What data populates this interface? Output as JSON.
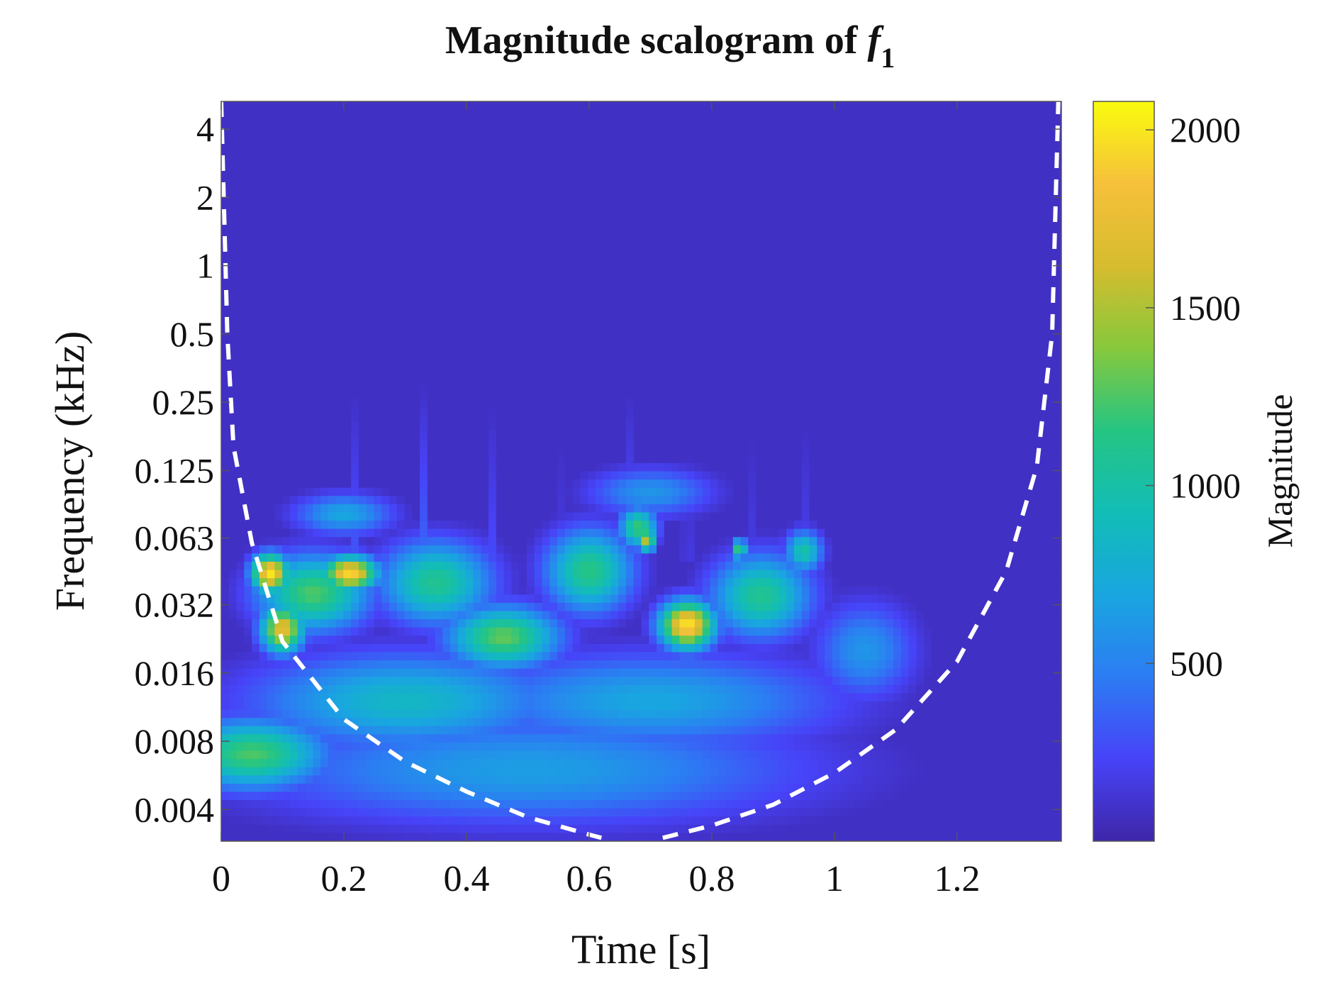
{
  "chart_data": {
    "type": "heatmap",
    "title_main": "Magnitude scalogram of ",
    "title_var": "f",
    "title_sub": "1",
    "xlabel": "Time [s]",
    "ylabel": "Frequency (kHz)",
    "colorbar_label": "Magnitude",
    "xlim": [
      0,
      1.37
    ],
    "x_ticks": [
      0,
      0.2,
      0.4,
      0.6,
      0.8,
      1,
      1.2
    ],
    "x_tick_labels": [
      "0",
      "0.2",
      "0.4",
      "0.6",
      "0.8",
      "1",
      "1.2"
    ],
    "ylim_khz": [
      0.0029,
      5.3
    ],
    "y_scale": "log2",
    "y_ticks": [
      4,
      2,
      1,
      0.5,
      0.25,
      0.125,
      0.063,
      0.032,
      0.016,
      0.008,
      0.004
    ],
    "y_tick_labels": [
      "4",
      "2",
      "1",
      "0.5",
      "0.25",
      "0.125",
      "0.063",
      "0.032",
      "0.016",
      "0.008",
      "0.004"
    ],
    "colorbar_range": [
      0,
      2080
    ],
    "colorbar_ticks": [
      2000,
      1500,
      1000,
      500
    ],
    "colorbar_tick_labels": [
      "2000",
      "1500",
      "1000",
      "500"
    ],
    "colormap": [
      "#3e26a8",
      "#4743f8",
      "#2c7cf3",
      "#19a6e0",
      "#12bdb6",
      "#25c583",
      "#87c83c",
      "#d6bc2e",
      "#f6c03b",
      "#f9fb0e"
    ],
    "background_value": 80,
    "cone_of_influence": {
      "style": "white dashed",
      "left_branch": [
        [
          0.0,
          5.3
        ],
        [
          0.01,
          0.5
        ],
        [
          0.02,
          0.16
        ],
        [
          0.05,
          0.06
        ],
        [
          0.1,
          0.022
        ],
        [
          0.2,
          0.01
        ],
        [
          0.3,
          0.0065
        ],
        [
          0.4,
          0.0048
        ],
        [
          0.5,
          0.0037
        ],
        [
          0.6,
          0.0031
        ],
        [
          0.62,
          0.003
        ]
      ],
      "right_branch": [
        [
          0.72,
          0.003
        ],
        [
          0.8,
          0.0034
        ],
        [
          0.9,
          0.0042
        ],
        [
          1.0,
          0.0058
        ],
        [
          1.1,
          0.009
        ],
        [
          1.2,
          0.018
        ],
        [
          1.28,
          0.045
        ],
        [
          1.33,
          0.13
        ],
        [
          1.355,
          0.5
        ],
        [
          1.365,
          5.3
        ]
      ]
    },
    "regions": [
      {
        "t": 0.08,
        "f": 0.044,
        "value": 2000,
        "spread_t": 0.03,
        "spread_oct": 0.28
      },
      {
        "t": 0.21,
        "f": 0.044,
        "value": 1950,
        "spread_t": 0.045,
        "spread_oct": 0.25
      },
      {
        "t": 0.1,
        "f": 0.025,
        "value": 1750,
        "spread_t": 0.035,
        "spread_oct": 0.35
      },
      {
        "t": 0.76,
        "f": 0.026,
        "value": 2000,
        "spread_t": 0.045,
        "spread_oct": 0.35
      },
      {
        "t": 0.695,
        "f": 0.062,
        "value": 1700,
        "spread_t": 0.012,
        "spread_oct": 0.18
      },
      {
        "t": 0.845,
        "f": 0.056,
        "value": 1300,
        "spread_t": 0.012,
        "spread_oct": 0.15
      },
      {
        "t": 0.46,
        "f": 0.023,
        "value": 1300,
        "spread_t": 0.09,
        "spread_oct": 0.45
      },
      {
        "t": 0.15,
        "f": 0.036,
        "value": 1250,
        "spread_t": 0.09,
        "spread_oct": 0.55
      },
      {
        "t": 0.35,
        "f": 0.04,
        "value": 1100,
        "spread_t": 0.09,
        "spread_oct": 0.6
      },
      {
        "t": 0.6,
        "f": 0.045,
        "value": 1150,
        "spread_t": 0.07,
        "spread_oct": 0.6
      },
      {
        "t": 0.88,
        "f": 0.035,
        "value": 1100,
        "spread_t": 0.08,
        "spread_oct": 0.6
      },
      {
        "t": 0.05,
        "f": 0.007,
        "value": 1250,
        "spread_t": 0.12,
        "spread_oct": 0.5
      },
      {
        "t": 0.3,
        "f": 0.012,
        "value": 850,
        "spread_t": 0.25,
        "spread_oct": 0.7
      },
      {
        "t": 0.7,
        "f": 0.012,
        "value": 700,
        "spread_t": 0.3,
        "spread_oct": 0.7
      },
      {
        "t": 0.5,
        "f": 0.006,
        "value": 650,
        "spread_t": 0.45,
        "spread_oct": 0.8
      },
      {
        "t": 0.68,
        "f": 0.07,
        "value": 1200,
        "spread_t": 0.03,
        "spread_oct": 0.3
      },
      {
        "t": 0.95,
        "f": 0.055,
        "value": 1000,
        "spread_t": 0.03,
        "spread_oct": 0.3
      },
      {
        "t": 1.05,
        "f": 0.02,
        "value": 600,
        "spread_t": 0.08,
        "spread_oct": 0.7
      },
      {
        "t": 0.2,
        "f": 0.08,
        "value": 700,
        "spread_t": 0.08,
        "spread_oct": 0.3
      },
      {
        "t": 0.7,
        "f": 0.1,
        "value": 600,
        "spread_t": 0.1,
        "spread_oct": 0.35
      }
    ],
    "spikes": [
      {
        "t": 0.22,
        "value": 350
      },
      {
        "t": 0.33,
        "value": 380
      },
      {
        "t": 0.44,
        "value": 300
      },
      {
        "t": 0.55,
        "value": 280
      },
      {
        "t": 0.67,
        "value": 450
      },
      {
        "t": 0.76,
        "value": 420
      },
      {
        "t": 0.87,
        "value": 300
      },
      {
        "t": 0.95,
        "value": 250
      }
    ]
  }
}
